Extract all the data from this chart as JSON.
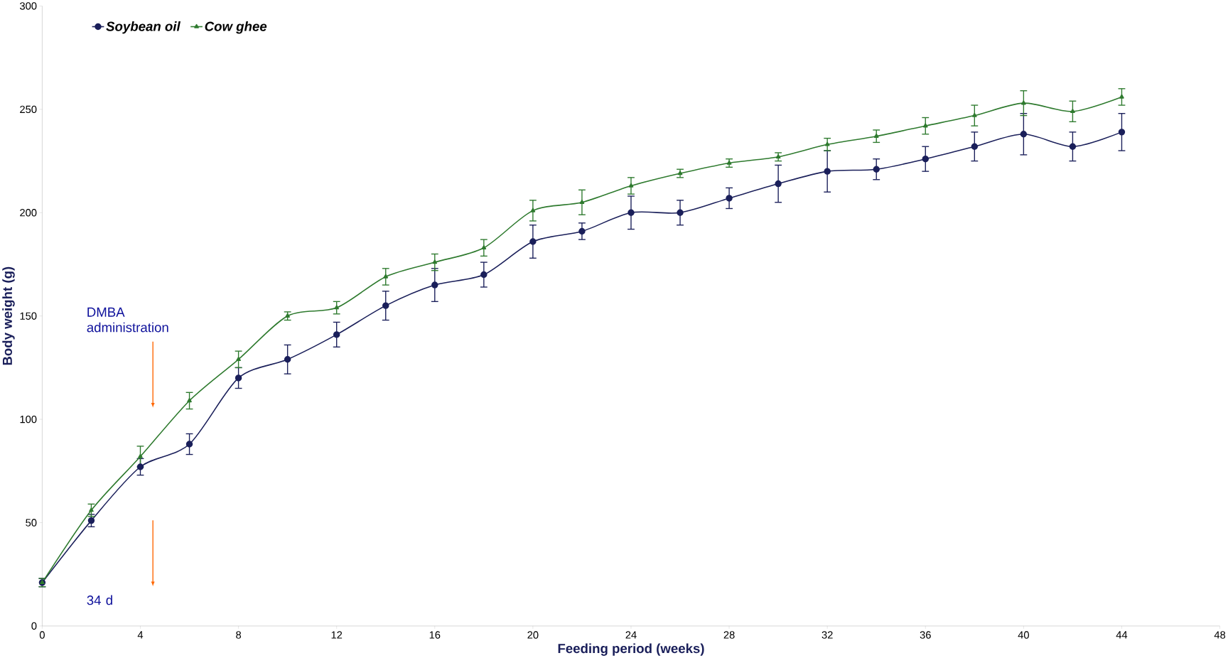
{
  "chart_data": {
    "type": "line",
    "xlabel": "Feeding period (weeks)",
    "ylabel": "Body weight (g)",
    "x": [
      0,
      2,
      4,
      6,
      8,
      10,
      12,
      14,
      16,
      18,
      20,
      22,
      24,
      26,
      28,
      30,
      32,
      34,
      36,
      38,
      40,
      42,
      44
    ],
    "series": [
      {
        "name": "Soybean oil",
        "color": "#1a1f5a",
        "marker": "circle",
        "values": [
          21,
          51,
          77,
          88,
          120,
          129,
          141,
          155,
          165,
          170,
          186,
          191,
          200,
          200,
          207,
          214,
          220,
          221,
          226,
          232,
          238,
          232,
          239
        ],
        "errors": [
          2,
          3,
          4,
          5,
          5,
          7,
          6,
          7,
          8,
          6,
          8,
          4,
          8,
          6,
          5,
          9,
          10,
          5,
          6,
          7,
          10,
          7,
          9
        ]
      },
      {
        "name": "Cow ghee",
        "color": "#2e7a2e",
        "marker": "triangle",
        "values": [
          21,
          56,
          82,
          109,
          129,
          150,
          154,
          169,
          176,
          183,
          201,
          205,
          213,
          219,
          224,
          227,
          233,
          237,
          242,
          247,
          253,
          249,
          256
        ],
        "errors": [
          2,
          3,
          5,
          4,
          4,
          2,
          3,
          4,
          4,
          4,
          5,
          6,
          4,
          2,
          2,
          2,
          3,
          3,
          4,
          5,
          6,
          5,
          4
        ]
      }
    ],
    "xlim": [
      0,
      48
    ],
    "xticks": [
      0,
      4,
      8,
      12,
      16,
      20,
      24,
      28,
      32,
      36,
      40,
      44,
      48
    ],
    "ylim": [
      0,
      300
    ],
    "yticks": [
      0,
      50,
      100,
      150,
      200,
      250,
      300
    ],
    "legend": "top left",
    "grid": false,
    "line_style": "solid",
    "annotations": [
      "DMBA administration",
      "34 d"
    ]
  }
}
